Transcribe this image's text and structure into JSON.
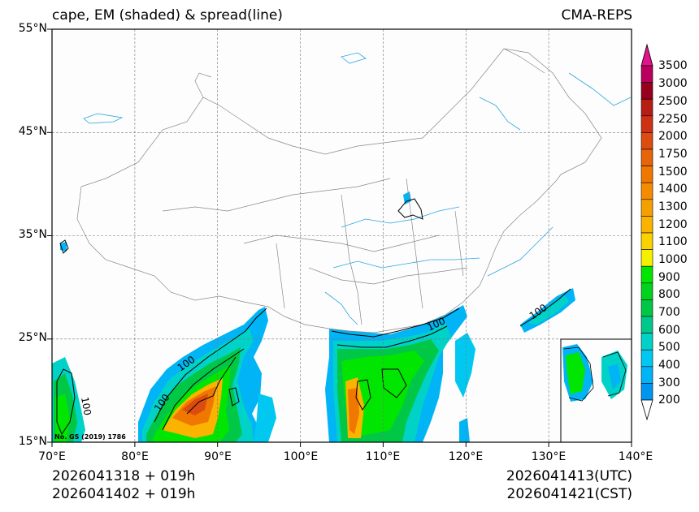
{
  "title_left": "cape, EM (shaded) & spread(line)",
  "title_right": "CMA-REPS",
  "lat_labels": [
    "55°N",
    "45°N",
    "35°N",
    "25°N",
    "15°N"
  ],
  "lon_labels": [
    "70°E",
    "80°E",
    "90°E",
    "100°E",
    "110°E",
    "120°E",
    "130°E",
    "140°E"
  ],
  "colorbar": {
    "levels": [
      "3500",
      "3000",
      "2500",
      "2250",
      "2000",
      "1750",
      "1500",
      "1400",
      "1300",
      "1200",
      "1100",
      "1000",
      "900",
      "800",
      "700",
      "600",
      "500",
      "400",
      "300",
      "200"
    ],
    "colors": [
      "#b8005f",
      "#96001c",
      "#b41e14",
      "#cc3214",
      "#dc4b10",
      "#e6640a",
      "#f07800",
      "#f58c00",
      "#f5a000",
      "#fab400",
      "#fad200",
      "#f5f000",
      "#00e600",
      "#00d21e",
      "#00c846",
      "#00c88c",
      "#00d2c8",
      "#00c8f0",
      "#00b4f5",
      "#0096f0"
    ]
  },
  "contour_labels": [
    "100",
    "100",
    "100",
    "100",
    "100"
  ],
  "map_note": "No. GS (2019) 1786",
  "footer": {
    "line1_left": "2026041318  +  019h",
    "line2_left": "2026041402  +  019h",
    "line1_right": "2026041413(UTC)",
    "line2_right": "2026041421(CST)"
  }
}
